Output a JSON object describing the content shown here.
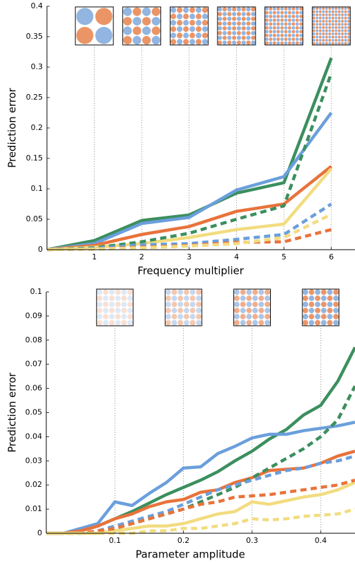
{
  "chart_data": [
    {
      "type": "line",
      "x_label": "Frequency multiplier",
      "y_label": "Prediction error",
      "x": [
        0,
        1,
        2,
        3,
        4,
        5,
        6
      ],
      "xlim": [
        0,
        6.5
      ],
      "ylim": [
        0,
        0.4
      ],
      "xticks": [
        1,
        2,
        3,
        4,
        5,
        6
      ],
      "yticks": [
        0,
        0.05,
        0.1,
        0.15,
        0.2,
        0.25,
        0.3,
        0.35,
        0.4
      ],
      "series": [
        {
          "color": "#3b8f5e",
          "dash": false,
          "values": [
            0,
            0.015,
            0.048,
            0.057,
            0.093,
            0.11,
            0.315
          ]
        },
        {
          "color": "#6b9fdc",
          "dash": false,
          "values": [
            0,
            0.01,
            0.043,
            0.053,
            0.098,
            0.12,
            0.225
          ]
        },
        {
          "color": "#e8733c",
          "dash": false,
          "values": [
            0,
            0.007,
            0.025,
            0.038,
            0.063,
            0.075,
            0.137
          ]
        },
        {
          "color": "#f2dc80",
          "dash": false,
          "values": [
            0,
            0.004,
            0.01,
            0.02,
            0.033,
            0.042,
            0.133
          ]
        },
        {
          "color": "#3b8f5e",
          "dash": true,
          "values": [
            0,
            0.003,
            0.013,
            0.027,
            0.05,
            0.072,
            0.29
          ]
        },
        {
          "color": "#6b9fdc",
          "dash": true,
          "values": [
            0,
            0.002,
            0.008,
            0.01,
            0.017,
            0.025,
            0.075
          ]
        },
        {
          "color": "#e8733c",
          "dash": true,
          "values": [
            0,
            0.001,
            0.004,
            0.007,
            0.012,
            0.013,
            0.033
          ]
        },
        {
          "color": "#f2dc80",
          "dash": true,
          "values": [
            0,
            0.001,
            0.003,
            0.006,
            0.01,
            0.02,
            0.058
          ]
        }
      ]
    },
    {
      "type": "line",
      "x_label": "Parameter amplitude",
      "y_label": "Prediction error",
      "x": [
        0,
        0.025,
        0.05,
        0.075,
        0.1,
        0.125,
        0.15,
        0.175,
        0.2,
        0.225,
        0.25,
        0.275,
        0.3,
        0.325,
        0.35,
        0.375,
        0.4,
        0.425,
        0.45
      ],
      "xlim": [
        0,
        0.45
      ],
      "ylim": [
        0,
        0.1
      ],
      "xticks": [
        0.1,
        0.2,
        0.3,
        0.4
      ],
      "yticks": [
        0,
        0.01,
        0.02,
        0.03,
        0.04,
        0.05,
        0.06,
        0.07,
        0.08,
        0.09,
        0.1
      ],
      "series": [
        {
          "color": "#3b8f5e",
          "dash": false,
          "values": [
            0,
            0,
            0.001,
            0.003,
            0.006,
            0.009,
            0.0125,
            0.016,
            0.019,
            0.022,
            0.0255,
            0.03,
            0.034,
            0.039,
            0.043,
            0.049,
            0.053,
            0.063,
            0.077
          ]
        },
        {
          "color": "#6b9fdc",
          "dash": false,
          "values": [
            0,
            0,
            0.002,
            0.004,
            0.013,
            0.0115,
            0.0165,
            0.021,
            0.027,
            0.0275,
            0.033,
            0.036,
            0.0395,
            0.041,
            0.041,
            0.0425,
            0.0435,
            0.0445,
            0.046
          ]
        },
        {
          "color": "#e8733c",
          "dash": false,
          "values": [
            0,
            0,
            0.001,
            0.003,
            0.006,
            0.008,
            0.011,
            0.013,
            0.014,
            0.017,
            0.018,
            0.021,
            0.023,
            0.026,
            0.0265,
            0.027,
            0.029,
            0.032,
            0.034
          ]
        },
        {
          "color": "#f2dc80",
          "dash": false,
          "values": [
            0,
            0,
            0,
            0,
            0.001,
            0.002,
            0.003,
            0.003,
            0.004,
            0.006,
            0.008,
            0.009,
            0.013,
            0.012,
            0.0135,
            0.015,
            0.016,
            0.018,
            0.021
          ]
        },
        {
          "color": "#3b8f5e",
          "dash": true,
          "values": [
            0,
            0,
            0,
            0.001,
            0.002,
            0.004,
            0.006,
            0.008,
            0.01,
            0.013,
            0.016,
            0.019,
            0.023,
            0.027,
            0.031,
            0.035,
            0.04,
            0.047,
            0.061
          ]
        },
        {
          "color": "#6b9fdc",
          "dash": true,
          "values": [
            0,
            0,
            0,
            0.001,
            0.003,
            0.005,
            0.007,
            0.009,
            0.012,
            0.015,
            0.018,
            0.02,
            0.022,
            0.024,
            0.026,
            0.027,
            0.029,
            0.03,
            0.032
          ]
        },
        {
          "color": "#e8733c",
          "dash": true,
          "values": [
            0,
            0,
            0,
            0.001,
            0.002,
            0.004,
            0.006,
            0.008,
            0.01,
            0.012,
            0.013,
            0.015,
            0.0155,
            0.016,
            0.017,
            0.018,
            0.019,
            0.02,
            0.022
          ]
        },
        {
          "color": "#f2dc80",
          "dash": true,
          "values": [
            0,
            0,
            0,
            0,
            0,
            0,
            0.001,
            0.001,
            0.002,
            0.002,
            0.003,
            0.004,
            0.006,
            0.0055,
            0.006,
            0.007,
            0.0075,
            0.008,
            0.01
          ]
        }
      ]
    }
  ]
}
